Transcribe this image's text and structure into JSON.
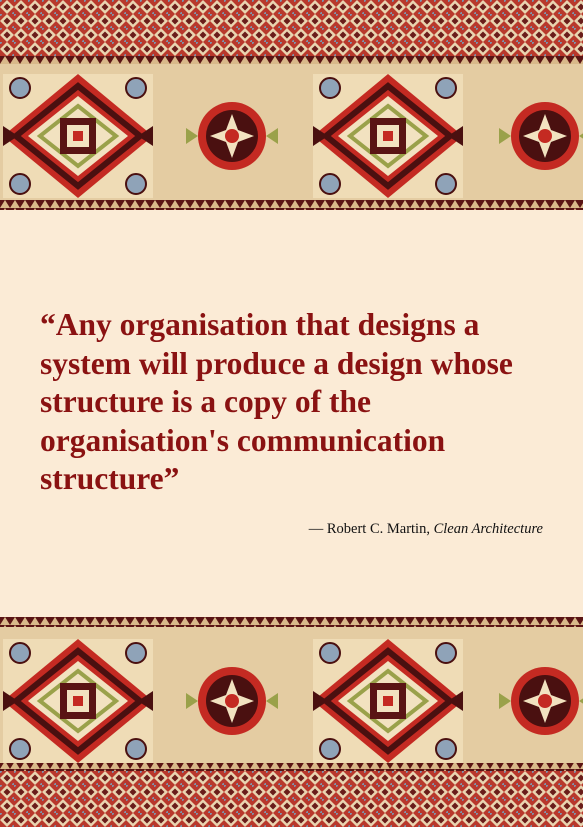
{
  "quote": {
    "text": "“Any organisation that designs a system will produce a design whose structure is a copy of the organisation's communication structure”",
    "author_prefix": "— Robert C. Martin,",
    "work": "Clean Architecture"
  },
  "decor": {
    "pattern_icon": "persian-carpet-pattern",
    "colors": {
      "background": "#fbebd6",
      "quote": "#8a1212",
      "carpet_red": "#c42a22",
      "carpet_dark": "#5a1414",
      "carpet_cream": "#f2e2c0",
      "carpet_blue": "#8fa3b8",
      "carpet_olive": "#9aa14a"
    }
  }
}
